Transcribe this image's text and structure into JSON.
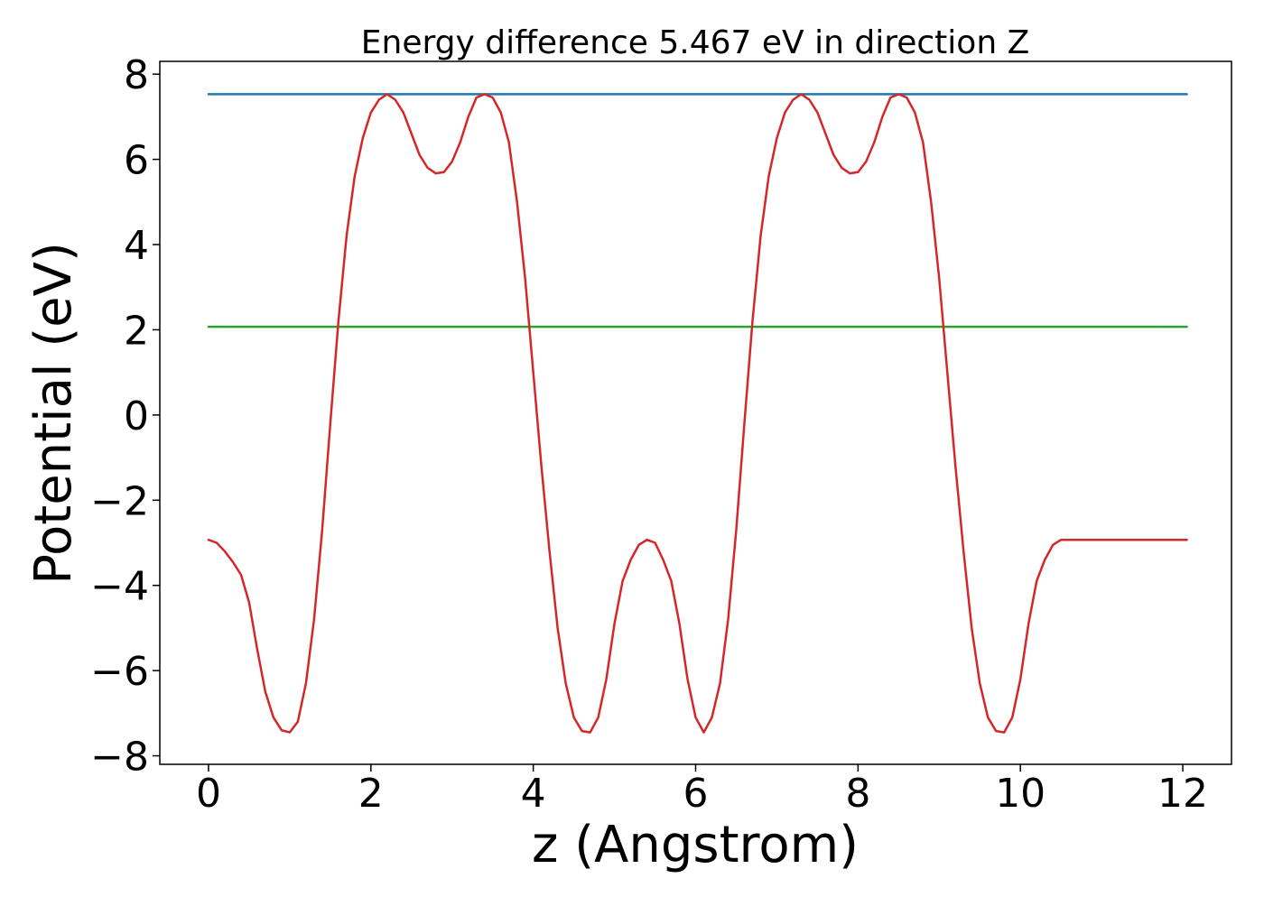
{
  "chart_data": {
    "type": "line",
    "title": "Energy difference 5.467 eV in direction Z",
    "xlabel": "z (Angstrom)",
    "ylabel": "Potential (eV)",
    "xlim": [
      -0.6,
      12.6
    ],
    "ylim": [
      -8.2,
      8.3
    ],
    "xticks": [
      0,
      2,
      4,
      6,
      8,
      10,
      12
    ],
    "yticks": [
      -8,
      -6,
      -4,
      -2,
      0,
      2,
      4,
      6,
      8
    ],
    "xtick_labels": [
      "0",
      "2",
      "4",
      "6",
      "8",
      "10",
      "12"
    ],
    "ytick_labels": [
      "−8",
      "−6",
      "−4",
      "−2",
      "0",
      "2",
      "4",
      "6",
      "8"
    ],
    "grid": false,
    "series": [
      {
        "color": "#1f77b4",
        "x": [
          0,
          12.05
        ],
        "y": [
          7.53,
          7.53
        ]
      },
      {
        "color": "#2ca02c",
        "x": [
          0,
          12.05
        ],
        "y": [
          2.07,
          2.07
        ]
      },
      {
        "color": "#d62728",
        "x": [
          0,
          0.1,
          0.2,
          0.3,
          0.4,
          0.5,
          0.6,
          0.7,
          0.8,
          0.9,
          1.0,
          1.1,
          1.2,
          1.3,
          1.4,
          1.5,
          1.6,
          1.7,
          1.8,
          1.9,
          2.0,
          2.1,
          2.2,
          2.3,
          2.4,
          2.5,
          2.6,
          2.7,
          2.8,
          2.9,
          3.0,
          3.1,
          3.2,
          3.3,
          3.4,
          3.5,
          3.6,
          3.7,
          3.8,
          3.9,
          4.0,
          4.1,
          4.2,
          4.3,
          4.4,
          4.5,
          4.6,
          4.7,
          4.8,
          4.9,
          5.0,
          5.1,
          5.2,
          5.3,
          5.4,
          5.5,
          5.6,
          5.7,
          5.8,
          5.9,
          6.0,
          6.1,
          6.2,
          6.3,
          6.4,
          6.5,
          6.6,
          6.7,
          6.8,
          6.9,
          7.0,
          7.1,
          7.2,
          7.3,
          7.4,
          7.5,
          7.6,
          7.7,
          7.8,
          7.9,
          8.0,
          8.1,
          8.2,
          8.3,
          8.4,
          8.5,
          8.6,
          8.7,
          8.8,
          8.9,
          9.0,
          9.1,
          9.2,
          9.3,
          9.4,
          9.5,
          9.6,
          9.7,
          9.8,
          9.9,
          10.0,
          10.1,
          10.2,
          10.3,
          10.4,
          10.5,
          10.6,
          10.7,
          10.8,
          10.9,
          11.0,
          11.1,
          11.2,
          11.3,
          11.4,
          11.5,
          11.6,
          11.7,
          11.8,
          11.9,
          12.0,
          12.05
        ],
        "y": [
          -2.93,
          -3.0,
          -3.2,
          -3.45,
          -3.75,
          -4.4,
          -5.5,
          -6.5,
          -7.1,
          -7.4,
          -7.45,
          -7.2,
          -6.3,
          -4.8,
          -2.7,
          -0.2,
          2.2,
          4.2,
          5.6,
          6.5,
          7.1,
          7.4,
          7.53,
          7.4,
          7.1,
          6.6,
          6.1,
          5.8,
          5.67,
          5.7,
          5.95,
          6.4,
          7.0,
          7.45,
          7.53,
          7.45,
          7.1,
          6.4,
          5.0,
          3.2,
          1.0,
          -1.2,
          -3.2,
          -5.0,
          -6.3,
          -7.1,
          -7.42,
          -7.45,
          -7.1,
          -6.2,
          -4.9,
          -3.9,
          -3.4,
          -3.05,
          -2.93,
          -3.0,
          -3.4,
          -3.9,
          -4.9,
          -6.2,
          -7.1,
          -7.45,
          -7.1,
          -6.3,
          -4.8,
          -2.7,
          -0.2,
          2.2,
          4.2,
          5.6,
          6.5,
          7.1,
          7.4,
          7.53,
          7.4,
          7.1,
          6.6,
          6.1,
          5.8,
          5.67,
          5.7,
          5.95,
          6.4,
          7.0,
          7.45,
          7.53,
          7.45,
          7.1,
          6.4,
          5.0,
          3.2,
          1.0,
          -1.2,
          -3.2,
          -5.0,
          -6.3,
          -7.1,
          -7.42,
          -7.45,
          -7.1,
          -6.2,
          -4.9,
          -3.9,
          -3.4,
          -3.05,
          -2.93,
          -2.93,
          -2.93,
          -2.93,
          -2.93,
          -2.93,
          -2.93,
          -2.93,
          -2.93,
          -2.93,
          -2.93,
          -2.93,
          -2.93,
          -2.93,
          -2.93,
          -2.93,
          -2.93
        ]
      }
    ]
  }
}
